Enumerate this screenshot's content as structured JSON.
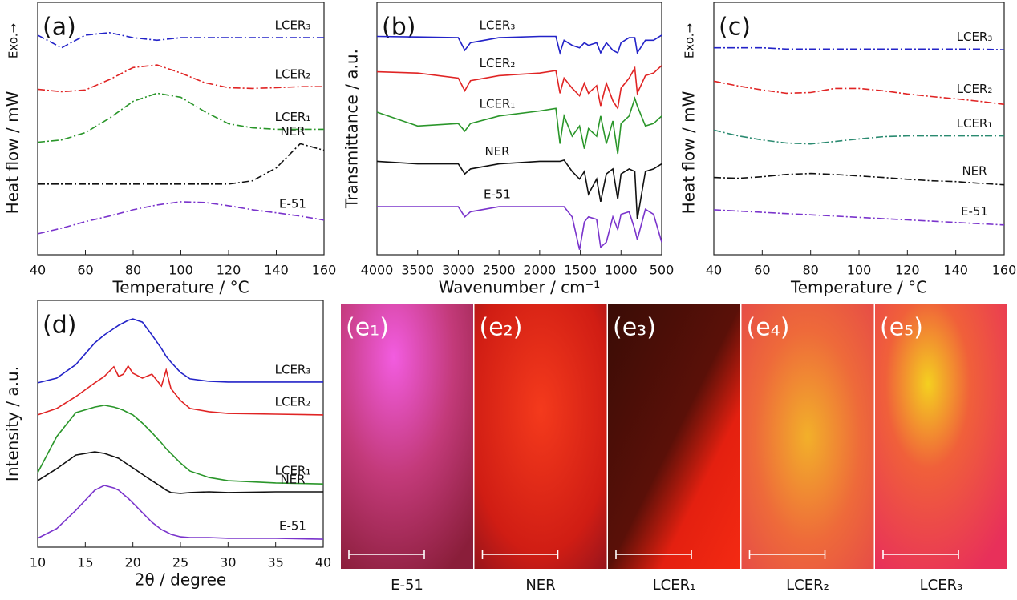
{
  "chart_data": [
    {
      "type": "line",
      "panel_label": "(a)",
      "xlabel": "Temperature / °C",
      "ylabel": "Heat flow / mW",
      "annotation": "Exo.→",
      "linestyle": "dashdot",
      "x": [
        40,
        50,
        60,
        70,
        80,
        90,
        100,
        110,
        120,
        130,
        140,
        150,
        160
      ],
      "xlim": [
        40,
        160
      ],
      "xticks": [
        40,
        60,
        80,
        100,
        120,
        140,
        160
      ],
      "ylim": [
        0,
        100
      ],
      "series": [
        {
          "name": "LCER₃",
          "color": "#2323c8",
          "values": [
            87,
            82,
            87,
            88,
            86,
            85,
            86,
            86,
            86,
            86,
            86,
            86,
            86
          ]
        },
        {
          "name": "LCER₂",
          "color": "#e02424",
          "values": [
            65.6,
            64.6,
            65.3,
            69.4,
            74.2,
            75.2,
            72,
            68.2,
            66.2,
            65.9,
            66.2,
            66.6,
            66.6
          ]
        },
        {
          "name": "LCER₁",
          "color": "#2a962a",
          "values": [
            44.6,
            45.5,
            48.4,
            54.1,
            60.8,
            64,
            62.4,
            56.7,
            51.9,
            50.3,
            49.7,
            49.7,
            49.7
          ]
        },
        {
          "name": "NER",
          "color": "#111111",
          "values": [
            28,
            28,
            28,
            28,
            28,
            28,
            28,
            28,
            28,
            29.3,
            34.4,
            44,
            41.4
          ]
        },
        {
          "name": "E-51",
          "color": "#7a34cc",
          "values": [
            8.3,
            10.5,
            13.1,
            15.3,
            17.8,
            19.7,
            21,
            20.7,
            19.4,
            17.8,
            16.6,
            15.3,
            13.7
          ]
        }
      ]
    },
    {
      "type": "line",
      "panel_label": "(b)",
      "xlabel": "Wavenumber / cm⁻¹",
      "ylabel": "Transmittance / a.u.",
      "linestyle": "solid",
      "x": [
        4000,
        3500,
        3000,
        2920,
        2850,
        2500,
        2000,
        1800,
        1750,
        1700,
        1600,
        1510,
        1450,
        1400,
        1300,
        1250,
        1180,
        1100,
        1040,
        1000,
        900,
        830,
        800,
        700,
        600,
        500
      ],
      "xlim": [
        4000,
        500
      ],
      "xticks": [
        4000,
        3500,
        3000,
        2500,
        2000,
        1500,
        1000,
        500
      ],
      "ylim": [
        0,
        100
      ],
      "series": [
        {
          "name": "LCER₃",
          "color": "#2323c8",
          "values": [
            86.5,
            86.3,
            86,
            81,
            84,
            86,
            86.5,
            86.5,
            80,
            85,
            83,
            82,
            84,
            83,
            84,
            80,
            84,
            81,
            80,
            84,
            86,
            86,
            80,
            85,
            85,
            87
          ]
        },
        {
          "name": "LCER₂",
          "color": "#e02424",
          "values": [
            72.5,
            72,
            70,
            65,
            69,
            71,
            72,
            73,
            64,
            70,
            66,
            63,
            68,
            64,
            67,
            59,
            68,
            61,
            58,
            66,
            70,
            74,
            64,
            71,
            72,
            75
          ]
        },
        {
          "name": "LCER₁",
          "color": "#2a962a",
          "values": [
            56.5,
            51,
            52,
            49,
            52,
            55,
            57,
            58,
            44,
            55,
            47,
            51,
            42,
            50,
            47,
            55,
            44,
            53,
            40,
            52,
            55,
            62,
            59,
            51,
            52,
            55
          ]
        },
        {
          "name": "NER",
          "color": "#111111",
          "values": [
            37,
            36,
            36,
            32,
            34,
            36,
            37,
            37,
            37,
            37.5,
            33,
            30,
            33,
            24,
            30,
            21,
            32,
            34,
            22,
            32,
            34,
            33,
            14,
            33,
            34,
            36
          ]
        },
        {
          "name": "E-51",
          "color": "#7a34cc",
          "values": [
            19,
            19,
            19,
            15,
            17,
            19,
            19,
            19,
            19,
            19,
            15,
            2,
            13,
            15,
            14,
            3,
            5,
            15,
            10,
            16,
            17,
            10,
            6,
            18,
            16,
            5
          ]
        }
      ]
    },
    {
      "type": "line",
      "panel_label": "(c)",
      "xlabel": "Temperature / °C",
      "ylabel": "Heat flow / mW",
      "annotation": "Exo.→",
      "linestyle": "dashdot",
      "x": [
        40,
        50,
        60,
        70,
        80,
        90,
        100,
        110,
        120,
        130,
        140,
        150,
        160
      ],
      "xlim": [
        40,
        160
      ],
      "xticks": [
        40,
        60,
        80,
        100,
        120,
        140,
        160
      ],
      "ylim": [
        0,
        100
      ],
      "series": [
        {
          "name": "LCER₃",
          "color": "#2323c8",
          "values": [
            82,
            82,
            82,
            81.5,
            81.5,
            81.5,
            81.5,
            81.5,
            81.5,
            81.5,
            81.5,
            81.5,
            81.2
          ]
        },
        {
          "name": "LCER₂",
          "color": "#e02424",
          "values": [
            68.8,
            66.9,
            65.3,
            64,
            64.3,
            65.9,
            65.9,
            65,
            63.7,
            62.7,
            61.8,
            60.8,
            59.6
          ]
        },
        {
          "name": "LCER₁",
          "color": "#2a8a70",
          "values": [
            49.4,
            47.1,
            45.5,
            44.3,
            43.9,
            44.9,
            45.9,
            46.8,
            47.1,
            47.1,
            47.1,
            47.1,
            47.1
          ]
        },
        {
          "name": "NER",
          "color": "#111111",
          "values": [
            30.6,
            30.3,
            30.9,
            31.8,
            32.2,
            31.8,
            31.2,
            30.6,
            29.9,
            29.3,
            29,
            28.3,
            27.7
          ]
        },
        {
          "name": "E-51",
          "color": "#7a34cc",
          "values": [
            17.8,
            17.3,
            16.8,
            16.3,
            15.8,
            15.3,
            14.8,
            14.3,
            13.8,
            13.3,
            12.8,
            12.3,
            11.8
          ]
        }
      ]
    },
    {
      "type": "line",
      "panel_label": "(d)",
      "xlabel": "2θ / degree",
      "ylabel": "Intensity / a.u.",
      "linestyle": "solid",
      "x": [
        10,
        12,
        14,
        16,
        17,
        18,
        18.5,
        19,
        19.5,
        20,
        21,
        22,
        23,
        23.5,
        24,
        25,
        26,
        28,
        30,
        35,
        40
      ],
      "xlim": [
        10,
        40
      ],
      "xticks": [
        10,
        15,
        20,
        25,
        30,
        35,
        40
      ],
      "ylim": [
        0,
        100
      ],
      "series": [
        {
          "name": "LCER₃",
          "color": "#2323c8",
          "values": [
            66.6,
            68.5,
            74,
            82.8,
            86,
            88.6,
            89.9,
            90.9,
            91.9,
            92.5,
            91.2,
            86,
            80.5,
            77.3,
            75,
            70.8,
            68.2,
            67.2,
            66.9,
            66.9,
            66.9
          ]
        },
        {
          "name": "LCER₂",
          "color": "#e02424",
          "values": [
            53.6,
            56.2,
            61,
            66.6,
            69.2,
            73.1,
            69.2,
            70.1,
            73.4,
            70.5,
            68.5,
            70.1,
            65.3,
            71.8,
            64.3,
            59.4,
            56.2,
            54.9,
            54.2,
            53.9,
            53.6
          ]
        },
        {
          "name": "LCER₁",
          "color": "#2a962a",
          "values": [
            30.2,
            44.8,
            54.5,
            56.8,
            57.5,
            56.8,
            56.2,
            55.5,
            54.5,
            53.6,
            50.3,
            46.4,
            42.2,
            39.9,
            38,
            34.1,
            30.8,
            28.2,
            26.9,
            26,
            25.6
          ]
        },
        {
          "name": "NER",
          "color": "#111111",
          "values": [
            26.9,
            31.8,
            37.3,
            38.6,
            38,
            36.7,
            36,
            34.7,
            33.4,
            32.1,
            29.5,
            26.9,
            24.4,
            23.1,
            22.1,
            21.8,
            22.1,
            22.4,
            22.1,
            22.4,
            22.4
          ]
        },
        {
          "name": "E-51",
          "color": "#7a34cc",
          "values": [
            3.6,
            7.5,
            14.9,
            23.1,
            25,
            24,
            23.1,
            21.4,
            19.8,
            17.9,
            14,
            10.1,
            7.1,
            6.2,
            5.2,
            4.2,
            3.9,
            3.9,
            3.6,
            3.6,
            3.2
          ]
        }
      ]
    }
  ],
  "micrographs": [
    {
      "label": "(e₁)",
      "caption": "E-51"
    },
    {
      "label": "(e₂)",
      "caption": "NER"
    },
    {
      "label": "(e₃)",
      "caption": "LCER₁"
    },
    {
      "label": "(e₄)",
      "caption": "LCER₂"
    },
    {
      "label": "(e₅)",
      "caption": "LCER₃"
    }
  ]
}
